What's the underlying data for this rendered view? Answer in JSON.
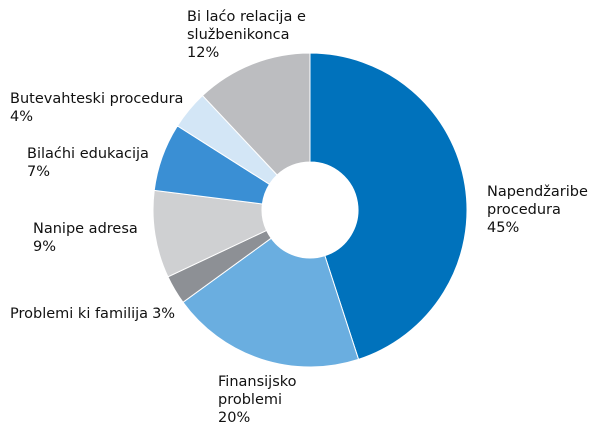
{
  "chart_data": {
    "type": "donut",
    "categories": [
      "Napendžaribe i procedura",
      "Finansijsko problemi",
      "Problemi ki familija",
      "Nanipe adresa",
      "Bilaćhi edukacija",
      "Butevahteski procedura",
      "Bi laćo relacija e službenikonca"
    ],
    "values": [
      45,
      20,
      3,
      9,
      7,
      4,
      12
    ],
    "value_labels": [
      "45%",
      "20%",
      "3%",
      "9%",
      "7%",
      "4%",
      "12%"
    ],
    "colors": [
      "#0072bc",
      "#6aaee0",
      "#8d9095",
      "#cfd0d2",
      "#3a8fd4",
      "#d3e6f6",
      "#bcbdc0"
    ]
  }
}
